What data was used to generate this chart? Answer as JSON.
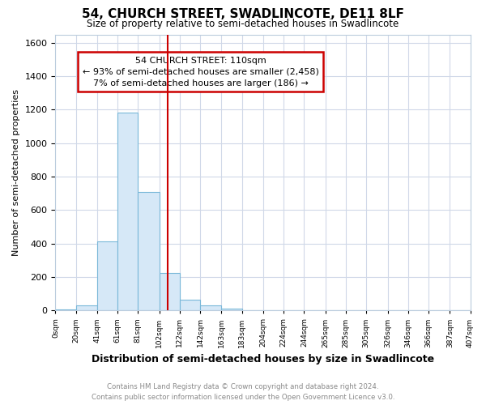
{
  "title": "54, CHURCH STREET, SWADLINCOTE, DE11 8LF",
  "subtitle": "Size of property relative to semi-detached houses in Swadlincote",
  "xlabel": "Distribution of semi-detached houses by size in Swadlincote",
  "ylabel": "Number of semi-detached properties",
  "footer_line1": "Contains HM Land Registry data © Crown copyright and database right 2024.",
  "footer_line2": "Contains public sector information licensed under the Open Government Licence v3.0.",
  "annotation_title": "54 CHURCH STREET: 110sqm",
  "annotation_line1": "← 93% of semi-detached houses are smaller (2,458)",
  "annotation_line2": "7% of semi-detached houses are larger (186) →",
  "property_size": 110,
  "bar_edges": [
    0,
    20,
    41,
    61,
    81,
    102,
    122,
    142,
    163,
    183,
    204,
    224,
    244,
    265,
    285,
    305,
    326,
    346,
    366,
    387,
    407
  ],
  "bar_heights": [
    5,
    30,
    415,
    1185,
    710,
    225,
    65,
    30,
    10,
    0,
    0,
    0,
    0,
    0,
    0,
    0,
    0,
    0,
    0,
    0
  ],
  "bar_color": "#d6e8f7",
  "bar_edge_color": "#7ab8d9",
  "vline_color": "#cc0000",
  "annotation_box_color": "#ffffff",
  "annotation_box_edge_color": "#cc0000",
  "grid_color": "#d0d8e8",
  "bg_color": "#ffffff",
  "plot_bg_color": "#ffffff",
  "ylim": [
    0,
    1650
  ],
  "yticks": [
    0,
    200,
    400,
    600,
    800,
    1000,
    1200,
    1400,
    1600
  ],
  "tick_labels": [
    "0sqm",
    "20sqm",
    "41sqm",
    "61sqm",
    "81sqm",
    "102sqm",
    "122sqm",
    "142sqm",
    "163sqm",
    "183sqm",
    "204sqm",
    "224sqm",
    "244sqm",
    "265sqm",
    "285sqm",
    "305sqm",
    "326sqm",
    "346sqm",
    "366sqm",
    "387sqm",
    "407sqm"
  ]
}
